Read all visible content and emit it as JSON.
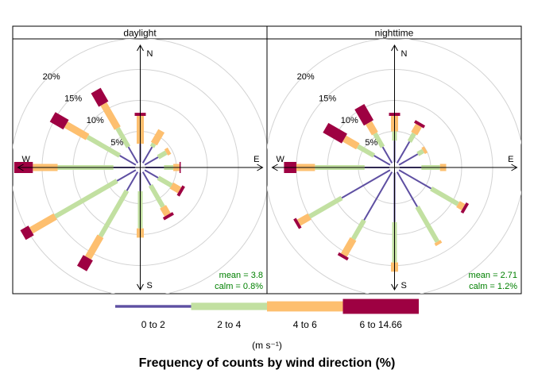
{
  "chart_data": {
    "type": "windrose",
    "title": "Frequency of counts by wind direction (%)",
    "units": "(m s⁻¹)",
    "radial_labels": [
      "5%",
      "10%",
      "15%",
      "20%"
    ],
    "radial_values": [
      5,
      10,
      15,
      20
    ],
    "cardinal_labels": [
      "N",
      "E",
      "S",
      "W"
    ],
    "directions_deg": [
      0,
      30,
      60,
      90,
      120,
      150,
      180,
      210,
      240,
      270,
      300,
      330
    ],
    "legend": [
      {
        "label": "0 to 2",
        "color": "#5E4FA2"
      },
      {
        "label": "2 to 4",
        "color": "#C2E0A1"
      },
      {
        "label": "4 to 6",
        "color": "#FDBF6F"
      },
      {
        "label": "6 to 14.66",
        "color": "#9E0142"
      }
    ],
    "panels": [
      {
        "name": "daylight",
        "mean_text": "mean = 3.8",
        "calm_text": "calm = 0.8%",
        "cumulative": [
          [
            3,
            3,
            7.5,
            8
          ],
          [
            3,
            3.6,
            6,
            6
          ],
          [
            2.5,
            4,
            4.6,
            4.6
          ],
          [
            3,
            4.5,
            5.5,
            5.7
          ],
          [
            2.5,
            5,
            6.5,
            7
          ],
          [
            2.5,
            6.5,
            8,
            8.5
          ],
          [
            3,
            9,
            10.5,
            10.5
          ],
          [
            3.5,
            12,
            16,
            18
          ],
          [
            3.5,
            15,
            19.5,
            21
          ],
          [
            3.5,
            12.5,
            16.5,
            19.5
          ],
          [
            3,
            9,
            13,
            15.5
          ],
          [
            3,
            6.5,
            11,
            13.5
          ]
        ]
      },
      {
        "name": "nighttime",
        "mean_text": "mean = 2.71",
        "calm_text": "calm = 1.2%",
        "cumulative": [
          [
            3.5,
            5,
            7.5,
            8
          ],
          [
            4,
            5.5,
            7,
            7.5
          ],
          [
            3.5,
            4.5,
            5,
            5
          ],
          [
            3.5,
            6.5,
            7.5,
            7.5
          ],
          [
            6,
            11,
            12,
            12.5
          ],
          [
            6.5,
            13,
            13.5,
            13.5
          ],
          [
            8,
            14.5,
            16,
            16
          ],
          [
            9,
            12.5,
            15.5,
            16
          ],
          [
            9,
            15,
            17,
            17.5
          ],
          [
            4,
            12,
            15,
            17
          ],
          [
            3,
            6,
            8.5,
            12
          ],
          [
            3,
            5.5,
            7.5,
            10.5
          ]
        ]
      }
    ]
  }
}
